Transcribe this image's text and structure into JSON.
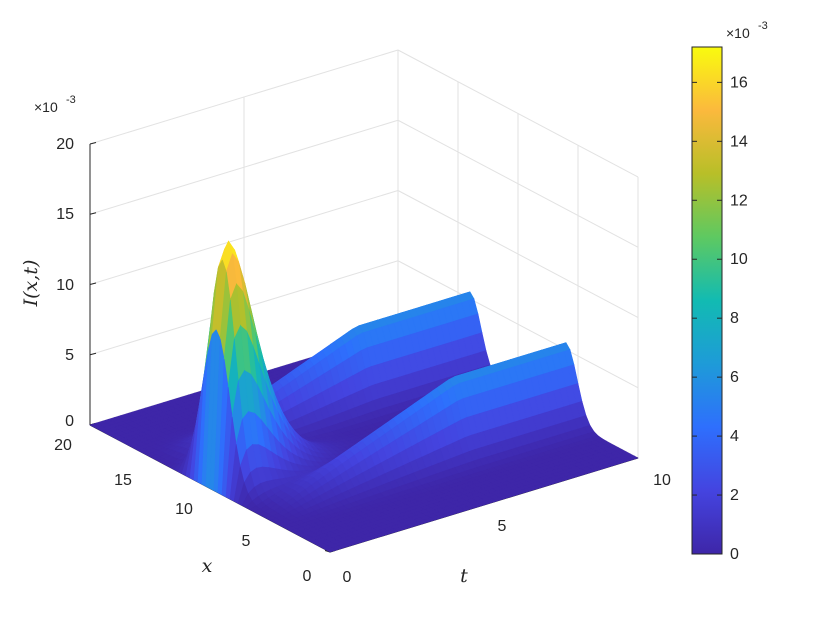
{
  "chart_data": {
    "type": "surface",
    "title": "",
    "xlabel": "t",
    "ylabel": "x",
    "zlabel": "I(x,t)",
    "xlim": [
      0,
      10
    ],
    "ylim": [
      0,
      20
    ],
    "zlim": [
      0,
      0.02
    ],
    "x_ticks": [
      0,
      5,
      10
    ],
    "y_ticks": [
      0,
      5,
      10,
      15,
      20
    ],
    "z_ticks": [
      0,
      5,
      10,
      15,
      20
    ],
    "z_exponent_label": "×10^-3",
    "grid": true,
    "colormap": "parula",
    "colorbar": {
      "limits": [
        0,
        0.0172
      ],
      "ticks": [
        0,
        2,
        4,
        6,
        8,
        10,
        12,
        14,
        16
      ],
      "exponent_label": "×10^-3",
      "position": "right"
    },
    "surface_description_values": {
      "peak_I": 0.0172,
      "peak_t": 0.5,
      "peak_x": 10,
      "ridge_lower_x": 6,
      "ridge_upper_x": 14,
      "ridge_height_at_t10": 0.0055
    }
  },
  "labels": {
    "z_axis": "I(x,t)",
    "t_axis": "t",
    "x_axis": "x",
    "z_exp_base": "×10",
    "z_exp_power": "-3",
    "cb_exp_base": "×10",
    "cb_exp_power": "-3",
    "z_ticks": [
      "0",
      "5",
      "10",
      "15",
      "20"
    ],
    "x_ticks": [
      "0",
      "5",
      "10",
      "15",
      "20"
    ],
    "t_ticks": [
      "0",
      "5",
      "10"
    ],
    "cb_ticks": [
      "0",
      "2",
      "4",
      "6",
      "8",
      "10",
      "12",
      "14",
      "16"
    ]
  }
}
